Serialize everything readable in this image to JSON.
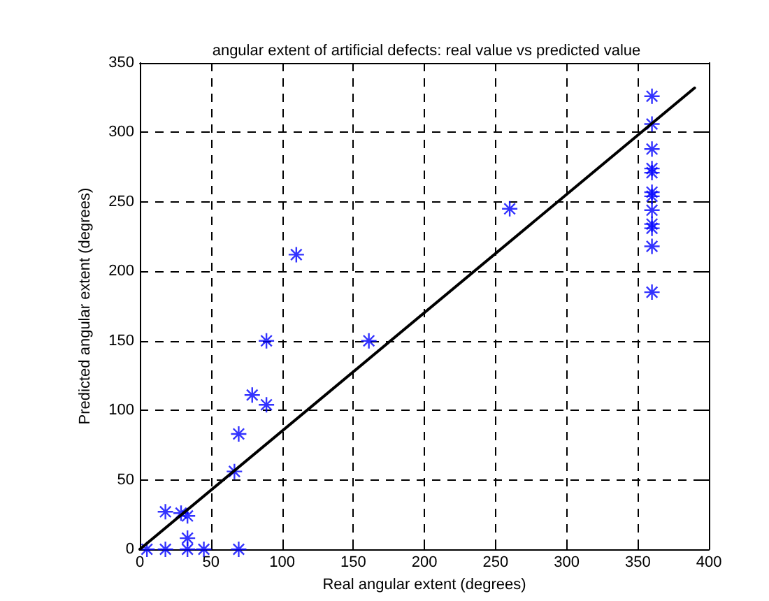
{
  "chart_data": {
    "type": "scatter",
    "title": "angular extent of artificial defects: real value vs predicted value",
    "xlabel": "Real angular extent (degrees)",
    "ylabel": "Predicted angular extent (degrees)",
    "xlim": [
      0,
      400
    ],
    "xticks": [
      0,
      50,
      100,
      150,
      200,
      250,
      300,
      350,
      400
    ],
    "ylim": [
      0,
      350
    ],
    "yticks": [
      0,
      50,
      100,
      150,
      200,
      250,
      300,
      350
    ],
    "grid": true,
    "series": [
      {
        "color": "#0000ff",
        "marker": "cross",
        "x": [
          5,
          18,
          18,
          29,
          33.5,
          33.5,
          33.5,
          45,
          69.5,
          66.5,
          69.5,
          79,
          89,
          89,
          110,
          161,
          260,
          360,
          360,
          360,
          360,
          360,
          360,
          360,
          360,
          360,
          360,
          360,
          360
        ],
        "values": [
          0,
          0,
          27,
          26,
          24,
          8,
          0,
          0,
          0,
          56,
          83,
          111,
          104,
          150,
          212,
          150,
          245,
          326,
          306,
          288,
          274,
          271,
          257,
          254,
          244,
          234,
          231,
          218,
          185
        ]
      },
      {
        "type": "line",
        "color": "#000000",
        "marker": "none",
        "line_style": "solid",
        "x": [
          0,
          390
        ],
        "values": [
          0,
          332
        ]
      }
    ]
  }
}
